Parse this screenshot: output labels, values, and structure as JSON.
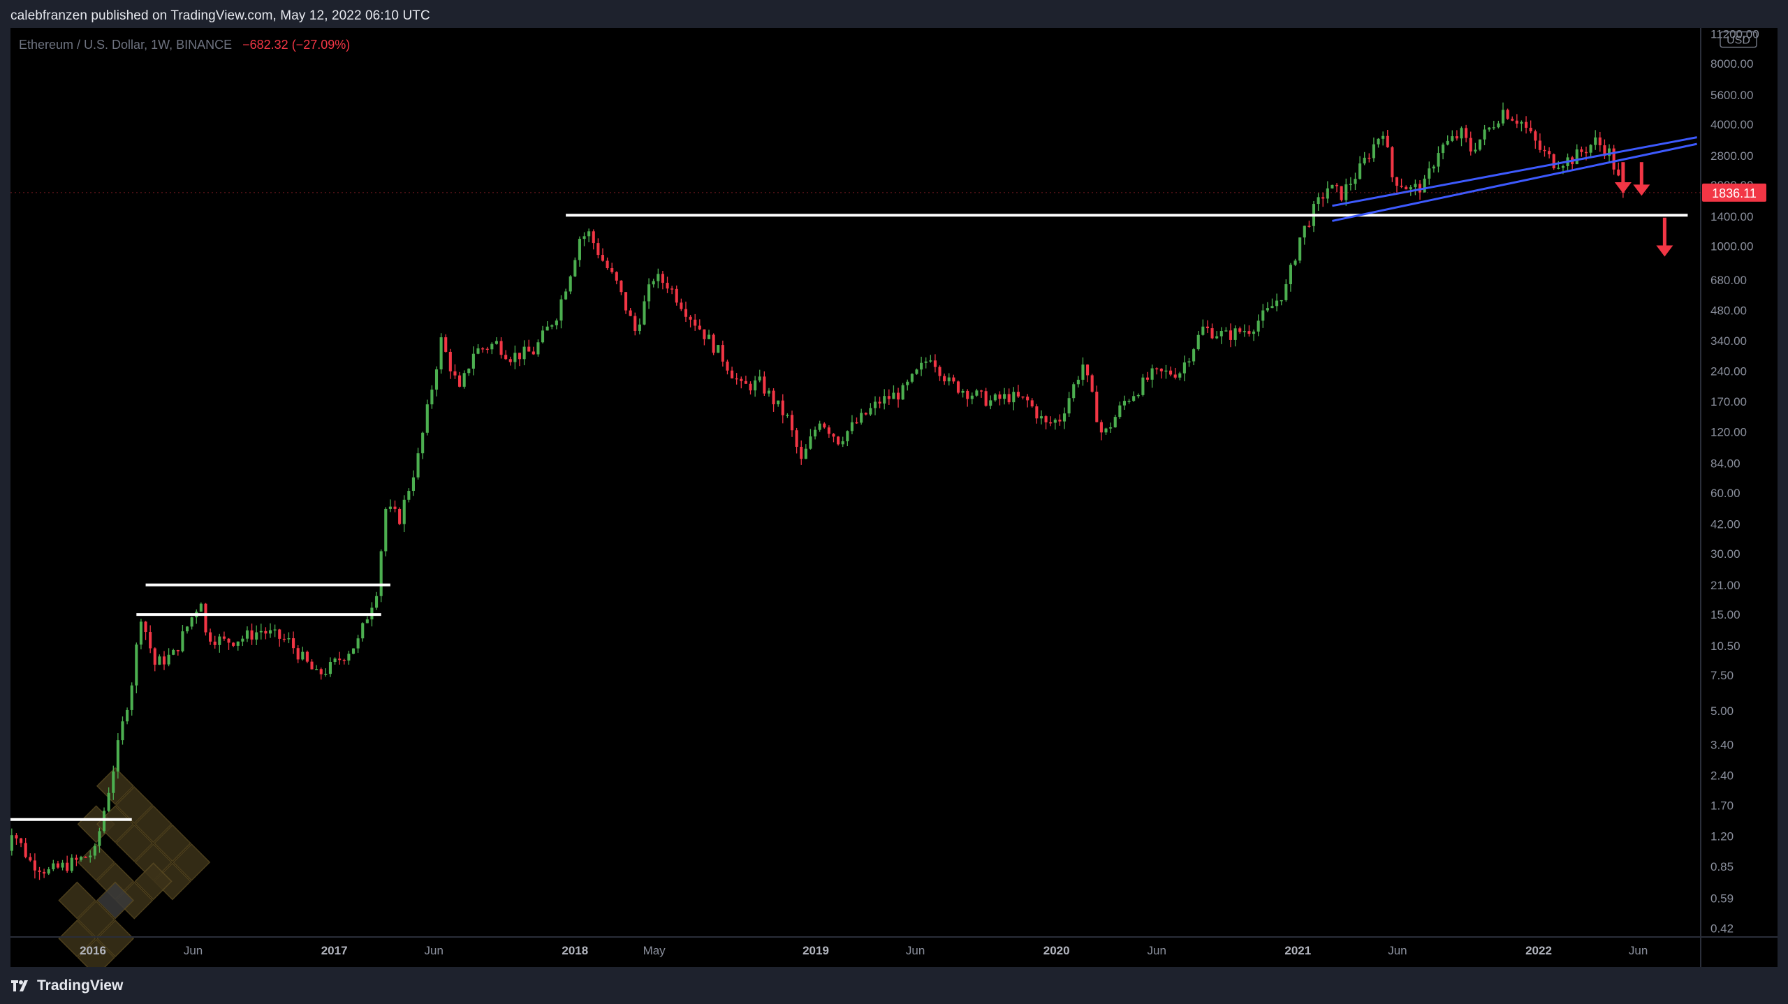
{
  "header": {
    "published_line": "calebfranzen published on TradingView.com, May 12, 2022 06:10 UTC"
  },
  "symbol": {
    "description": "Ethereum / U.S. Dollar, 1W, BINANCE",
    "change": "−682.32 (−27.09%)"
  },
  "footer": {
    "brand": "TradingView",
    "logo_icon": "tradingview-logo-icon"
  },
  "colors": {
    "background": "#000000",
    "up": "#4caf50",
    "down": "#f23645",
    "support_lines": "#ffffff",
    "trendline": "#3d5afe",
    "arrow": "#f23645",
    "price_tag": "#f23645"
  },
  "chart_data": {
    "type": "candlestick",
    "symbol": "ETHUSD",
    "interval": "1W",
    "exchange": "BINANCE",
    "y_scale": "log",
    "ylim": [
      0.38,
      12000
    ],
    "currency_label": "USD",
    "y_ticks": [
      "0.42",
      "0.59",
      "0.85",
      "1.20",
      "1.70",
      "2.40",
      "3.40",
      "5.00",
      "7.50",
      "10.50",
      "15.00",
      "21.00",
      "30.00",
      "42.00",
      "60.00",
      "84.00",
      "120.00",
      "170.00",
      "240.00",
      "340.00",
      "480.00",
      "680.00",
      "1000.00",
      "1400.00",
      "2000.00",
      "2800.00",
      "4000.00",
      "5600.00",
      "8000.00",
      "11200.00"
    ],
    "x_ticks": [
      {
        "label": "2016",
        "bold": true,
        "date": "2016-01-01"
      },
      {
        "label": "Jun",
        "bold": false,
        "date": "2016-06-01"
      },
      {
        "label": "2017",
        "bold": true,
        "date": "2017-01-01"
      },
      {
        "label": "Jun",
        "bold": false,
        "date": "2017-06-01"
      },
      {
        "label": "2018",
        "bold": true,
        "date": "2018-01-01"
      },
      {
        "label": "May",
        "bold": false,
        "date": "2018-05-01"
      },
      {
        "label": "2019",
        "bold": true,
        "date": "2019-01-01"
      },
      {
        "label": "Jun",
        "bold": false,
        "date": "2019-06-01"
      },
      {
        "label": "2020",
        "bold": true,
        "date": "2020-01-01"
      },
      {
        "label": "Jun",
        "bold": false,
        "date": "2020-06-01"
      },
      {
        "label": "2021",
        "bold": true,
        "date": "2021-01-01"
      },
      {
        "label": "Jun",
        "bold": false,
        "date": "2021-06-01"
      },
      {
        "label": "2022",
        "bold": true,
        "date": "2022-01-01"
      },
      {
        "label": "Jun",
        "bold": false,
        "date": "2022-06-01"
      }
    ],
    "last_price": "1836.11",
    "price_path": [
      [
        "2015-08-10",
        0.7
      ],
      [
        "2015-08-31",
        1.3
      ],
      [
        "2015-09-28",
        0.9
      ],
      [
        "2015-10-26",
        0.8
      ],
      [
        "2015-12-07",
        0.9
      ],
      [
        "2016-01-04",
        1.0
      ],
      [
        "2016-02-01",
        2.6
      ],
      [
        "2016-02-29",
        7.0
      ],
      [
        "2016-03-14",
        15.0
      ],
      [
        "2016-04-04",
        8.5
      ],
      [
        "2016-05-02",
        9.5
      ],
      [
        "2016-06-13",
        18.0
      ],
      [
        "2016-06-20",
        12.0
      ],
      [
        "2016-07-18",
        11.0
      ],
      [
        "2016-08-15",
        11.5
      ],
      [
        "2016-09-12",
        12.5
      ],
      [
        "2016-10-24",
        11.0
      ],
      [
        "2016-12-05",
        7.5
      ],
      [
        "2016-12-26",
        8.2
      ],
      [
        "2017-02-06",
        11.0
      ],
      [
        "2017-03-06",
        20.0
      ],
      [
        "2017-03-20",
        50.0
      ],
      [
        "2017-04-10",
        45.0
      ],
      [
        "2017-05-08",
        90.0
      ],
      [
        "2017-06-12",
        340.0
      ],
      [
        "2017-07-10",
        190.0
      ],
      [
        "2017-07-31",
        300.0
      ],
      [
        "2017-09-04",
        330.0
      ],
      [
        "2017-09-25",
        285.0
      ],
      [
        "2017-10-30",
        300.0
      ],
      [
        "2017-12-04",
        460.0
      ],
      [
        "2017-12-25",
        750.0
      ],
      [
        "2018-01-08",
        1100.0
      ],
      [
        "2018-01-22",
        1150.0
      ],
      [
        "2018-02-12",
        850.0
      ],
      [
        "2018-03-05",
        650.0
      ],
      [
        "2018-04-02",
        380.0
      ],
      [
        "2018-04-30",
        700.0
      ],
      [
        "2018-05-21",
        650.0
      ],
      [
        "2018-06-25",
        450.0
      ],
      [
        "2018-08-13",
        280.0
      ],
      [
        "2018-09-10",
        200.0
      ],
      [
        "2018-10-08",
        210.0
      ],
      [
        "2018-11-19",
        140.0
      ],
      [
        "2018-12-10",
        85.0
      ],
      [
        "2019-01-07",
        140.0
      ],
      [
        "2019-02-04",
        110.0
      ],
      [
        "2019-03-11",
        140.0
      ],
      [
        "2019-04-08",
        170.0
      ],
      [
        "2019-05-13",
        190.0
      ],
      [
        "2019-06-10",
        250.0
      ],
      [
        "2019-06-24",
        290.0
      ],
      [
        "2019-07-22",
        210.0
      ],
      [
        "2019-08-19",
        190.0
      ],
      [
        "2019-09-23",
        170.0
      ],
      [
        "2019-10-21",
        180.0
      ],
      [
        "2019-11-18",
        170.0
      ],
      [
        "2019-12-16",
        130.0
      ],
      [
        "2020-01-06",
        140.0
      ],
      [
        "2020-02-10",
        260.0
      ],
      [
        "2020-03-09",
        120.0
      ],
      [
        "2020-03-16",
        120.0
      ],
      [
        "2020-04-13",
        170.0
      ],
      [
        "2020-05-25",
        230.0
      ],
      [
        "2020-07-06",
        240.0
      ],
      [
        "2020-08-10",
        390.0
      ],
      [
        "2020-09-14",
        360.0
      ],
      [
        "2020-10-19",
        390.0
      ],
      [
        "2020-11-16",
        470.0
      ],
      [
        "2020-12-14",
        620.0
      ],
      [
        "2021-01-04",
        1100.0
      ],
      [
        "2021-01-25",
        1500.0
      ],
      [
        "2021-02-15",
        1950.0
      ],
      [
        "2021-03-08",
        1800.0
      ],
      [
        "2021-04-05",
        2400.0
      ],
      [
        "2021-05-10",
        3800.0
      ],
      [
        "2021-05-24",
        2200.0
      ],
      [
        "2021-06-21",
        1900.0
      ],
      [
        "2021-07-12",
        2000.0
      ],
      [
        "2021-08-02",
        3000.0
      ],
      [
        "2021-09-06",
        3600.0
      ],
      [
        "2021-09-20",
        3000.0
      ],
      [
        "2021-10-18",
        3800.0
      ],
      [
        "2021-11-08",
        4700.0
      ],
      [
        "2021-12-06",
        4100.0
      ],
      [
        "2022-01-03",
        3000.0
      ],
      [
        "2022-01-24",
        2600.0
      ],
      [
        "2022-02-21",
        2700.0
      ],
      [
        "2022-03-28",
        3300.0
      ],
      [
        "2022-04-18",
        2900.0
      ],
      [
        "2022-05-09",
        1836.11
      ]
    ],
    "annotations": [
      {
        "type": "horizontal_segment",
        "price": 1.45,
        "from": "2015-08-17",
        "to": "2016-02-29",
        "color": "#ffffff"
      },
      {
        "type": "horizontal_segment",
        "price": 15.0,
        "from": "2016-03-07",
        "to": "2017-03-13",
        "color": "#ffffff"
      },
      {
        "type": "horizontal_segment",
        "price": 21.0,
        "from": "2016-03-21",
        "to": "2017-03-27",
        "color": "#ffffff"
      },
      {
        "type": "horizontal_segment",
        "price": 1420.0,
        "from": "2017-12-18",
        "to": "2022-08-15",
        "color": "#ffffff"
      },
      {
        "type": "trendline",
        "from": [
          "2021-02-22",
          1330.0
        ],
        "to": [
          "2022-08-29",
          3200.0
        ],
        "color": "#3d5afe"
      },
      {
        "type": "trendline",
        "from": [
          "2021-02-22",
          1580.0
        ],
        "to": [
          "2022-08-29",
          3450.0
        ],
        "color": "#3d5afe"
      },
      {
        "type": "arrow_down",
        "at": "2022-05-09",
        "from_price": 2600.0,
        "to_price": 1850.0,
        "color": "#f23645"
      },
      {
        "type": "arrow_down",
        "at": "2022-06-06",
        "from_price": 2600.0,
        "to_price": 1800.0,
        "color": "#f23645"
      },
      {
        "type": "arrow_down",
        "at": "2022-07-11",
        "from_price": 1380.0,
        "to_price": 900.0,
        "color": "#f23645"
      }
    ]
  }
}
